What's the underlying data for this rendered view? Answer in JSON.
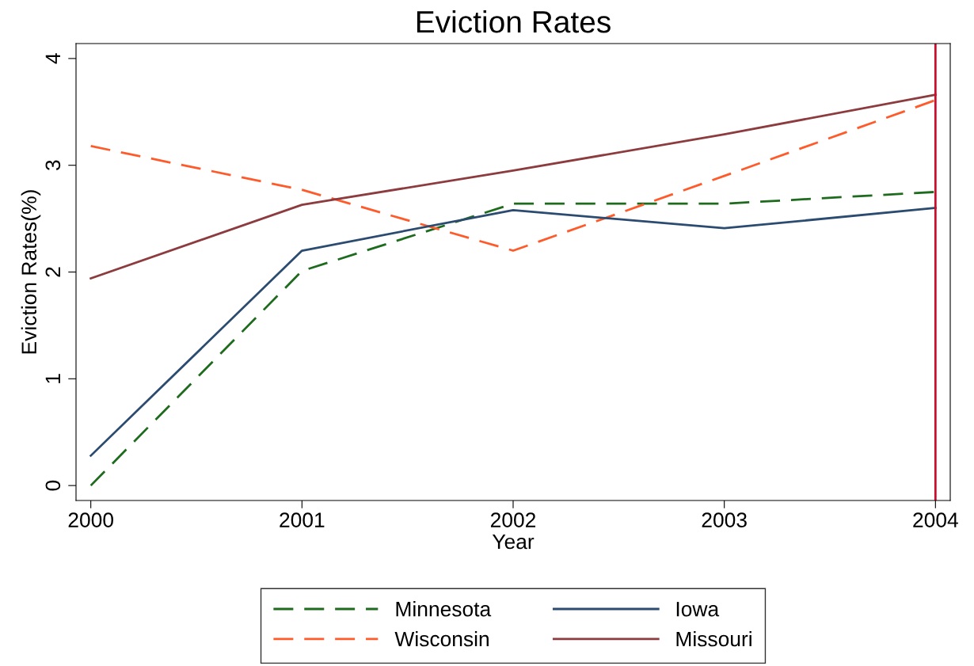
{
  "chart_data": {
    "type": "line",
    "title": "Eviction Rates",
    "xlabel": "Year",
    "ylabel": "Eviction Rates(%)",
    "x": [
      2000,
      2001,
      2002,
      2003,
      2004
    ],
    "series": [
      {
        "name": "Minnesota",
        "color": "#1e6b1e",
        "line_style": "dashed",
        "values": [
          0.0,
          2.01,
          2.64,
          2.64,
          2.75
        ]
      },
      {
        "name": "Wisconsin",
        "color": "#ff5a2a",
        "line_style": "dashed",
        "values": [
          3.18,
          2.77,
          2.2,
          2.9,
          3.61
        ]
      },
      {
        "name": "Iowa",
        "color": "#2b4b70",
        "line_style": "solid",
        "values": [
          0.28,
          2.2,
          2.58,
          2.41,
          2.6
        ]
      },
      {
        "name": "Missouri",
        "color": "#8c3b3e",
        "line_style": "solid",
        "values": [
          1.94,
          2.63,
          2.95,
          3.29,
          3.66
        ]
      }
    ],
    "xlim": [
      1999.93,
      2004.07
    ],
    "xticks": [
      2000,
      2001,
      2002,
      2003,
      2004
    ],
    "ylim": [
      -0.14,
      4.14
    ],
    "yticks": [
      0,
      1,
      2,
      3,
      4
    ],
    "ref_lines": [
      {
        "axis": "x",
        "value": 2004,
        "color": "#c8102e"
      }
    ],
    "grid": false,
    "legend": "bottom",
    "marker": "none"
  }
}
